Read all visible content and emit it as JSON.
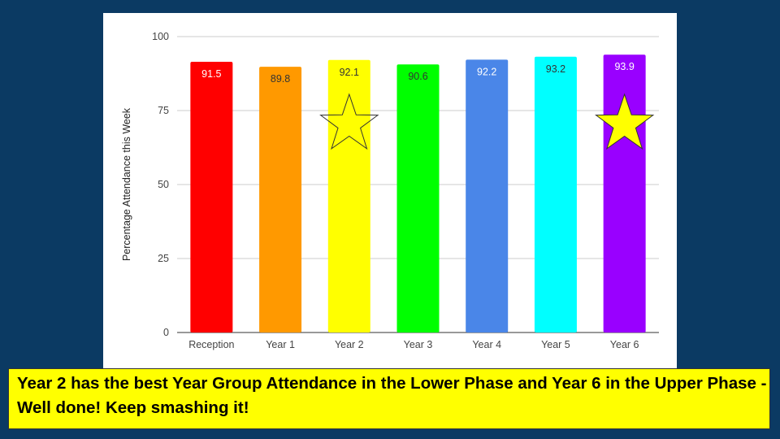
{
  "chart_data": {
    "type": "bar",
    "categories": [
      "Reception",
      "Year 1",
      "Year 2",
      "Year 3",
      "Year 4",
      "Year 5",
      "Year 6"
    ],
    "values": [
      91.5,
      89.8,
      92.1,
      90.6,
      92.2,
      93.2,
      93.9
    ],
    "data_labels": [
      "91.5",
      "89.8",
      "92.1",
      "90.6",
      "92.2",
      "93.2",
      "93.9"
    ],
    "colors": [
      "#ff0000",
      "#ff9900",
      "#ffff00",
      "#00ff00",
      "#4a86e8",
      "#00ffff",
      "#9900ff"
    ],
    "label_colors": [
      "#ffffff",
      "#333333",
      "#333333",
      "#333333",
      "#ffffff",
      "#333333",
      "#ffffff"
    ],
    "title": "",
    "xlabel": "",
    "ylabel": "Percentage Attendance this Week",
    "ylim": [
      0,
      100
    ],
    "yticks": [
      "0",
      "25",
      "50",
      "75",
      "100"
    ],
    "grid": true,
    "stars": [
      {
        "category": "Year 2",
        "fill": "none"
      },
      {
        "category": "Year 6",
        "fill": "#ffff00"
      }
    ]
  },
  "banner": {
    "text": "Year 2 has the best Year Group Attendance in the Lower Phase and Year 6 in the Upper Phase - Well done! Keep smashing it!"
  }
}
